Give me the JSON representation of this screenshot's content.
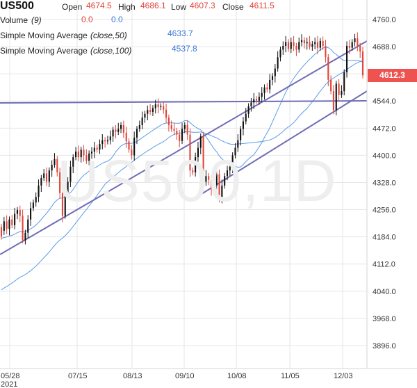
{
  "header": {
    "symbol": "US500",
    "open_label": "Open",
    "open_value": "4674.5",
    "high_label": "High",
    "high_value": "4686.1",
    "low_label": "Low",
    "low_value": "4607.3",
    "close_label": "Close",
    "close_value": "4611.5",
    "volume_label": "Volume",
    "volume_param": "(9)",
    "volume_value_1": "0.0",
    "volume_value_2": "0.0",
    "sma50_label": "Simple Moving Average",
    "sma50_param": "(close,50)",
    "sma50_value": "4633.7",
    "sma100_label": "Simple Moving Average",
    "sma100_param": "(close,100)",
    "sma100_value": "4537.8"
  },
  "watermark": "US500,1D",
  "last_price_label": "4612.3",
  "colors": {
    "up": "#111111",
    "down": "#e0443a",
    "ma": "#5a9be8",
    "trend": "#6f6cb5",
    "price_tag": "#ef5350",
    "grid": "#e6e6e6"
  },
  "chart_data": {
    "type": "candlestick",
    "title": "US500",
    "y_ticks": [
      4760.0,
      4688.0,
      4616.0,
      4544.0,
      4472.0,
      4400.0,
      4328.0,
      4256.0,
      4184.0,
      4112.0,
      4040.0,
      3968.0,
      3896.0
    ],
    "y_tick_labels": [
      "4760.0",
      "4688.0",
      "4616.0",
      "4544.0",
      "4472.0",
      "4400.0",
      "4328.0",
      "4256.0",
      "4184.0",
      "4112.0",
      "4040.0",
      "3968.0",
      "3896.0"
    ],
    "ylim": [
      3840,
      4788
    ],
    "x_tick_labels": [
      "05/28",
      "07/15",
      "08/13",
      "09/10",
      "10/08",
      "11/05",
      "12/03"
    ],
    "x_sublabel": "2021",
    "ohlc_points": [
      [
        4210,
        4185
      ],
      [
        4200,
        4225
      ],
      [
        4225,
        4205
      ],
      [
        4205,
        4230
      ],
      [
        4230,
        4215
      ],
      [
        4215,
        4245
      ],
      [
        4245,
        4255
      ],
      [
        4255,
        4240
      ],
      [
        4240,
        4175
      ],
      [
        4175,
        4195
      ],
      [
        4195,
        4230
      ],
      [
        4230,
        4260
      ],
      [
        4260,
        4275
      ],
      [
        4275,
        4290
      ],
      [
        4290,
        4320
      ],
      [
        4320,
        4340
      ],
      [
        4340,
        4352
      ],
      [
        4352,
        4330
      ],
      [
        4330,
        4360
      ],
      [
        4360,
        4375
      ],
      [
        4375,
        4390
      ],
      [
        4390,
        4355
      ],
      [
        4355,
        4300
      ],
      [
        4300,
        4240
      ],
      [
        4240,
        4300
      ],
      [
        4300,
        4330
      ],
      [
        4330,
        4370
      ],
      [
        4370,
        4395
      ],
      [
        4395,
        4410
      ],
      [
        4410,
        4395
      ],
      [
        4395,
        4415
      ],
      [
        4415,
        4400
      ],
      [
        4400,
        4385
      ],
      [
        4385,
        4405
      ],
      [
        4405,
        4410
      ],
      [
        4410,
        4420
      ],
      [
        4420,
        4415
      ],
      [
        4415,
        4430
      ],
      [
        4430,
        4440
      ],
      [
        4440,
        4437
      ],
      [
        4437,
        4440
      ],
      [
        4440,
        4450
      ],
      [
        4450,
        4468
      ],
      [
        4468,
        4462
      ],
      [
        4462,
        4470
      ],
      [
        4470,
        4480
      ],
      [
        4480,
        4460
      ],
      [
        4460,
        4437
      ],
      [
        4437,
        4415
      ],
      [
        4415,
        4400
      ],
      [
        4400,
        4447
      ],
      [
        4447,
        4470
      ],
      [
        4470,
        4480
      ],
      [
        4480,
        4500
      ],
      [
        4500,
        4510
      ],
      [
        4510,
        4520
      ],
      [
        4520,
        4515
      ],
      [
        4515,
        4525
      ],
      [
        4525,
        4535
      ],
      [
        4535,
        4528
      ],
      [
        4528,
        4530
      ],
      [
        4530,
        4521
      ],
      [
        4521,
        4500
      ],
      [
        4500,
        4480
      ],
      [
        4480,
        4470
      ],
      [
        4470,
        4465
      ],
      [
        4465,
        4455
      ],
      [
        4455,
        4438
      ],
      [
        4438,
        4470
      ],
      [
        4470,
        4480
      ],
      [
        4480,
        4455
      ],
      [
        4455,
        4360
      ],
      [
        4360,
        4355
      ],
      [
        4355,
        4395
      ],
      [
        4395,
        4420
      ],
      [
        4420,
        4450
      ],
      [
        4450,
        4330
      ],
      [
        4330,
        4345
      ],
      [
        4345,
        4335
      ],
      [
        4335,
        4310
      ],
      [
        4310,
        4320
      ],
      [
        4320,
        4350
      ],
      [
        4350,
        4290
      ],
      [
        4290,
        4320
      ],
      [
        4320,
        4345
      ],
      [
        4345,
        4360
      ],
      [
        4360,
        4370
      ],
      [
        4370,
        4400
      ],
      [
        4400,
        4420
      ],
      [
        4420,
        4440
      ],
      [
        4440,
        4470
      ],
      [
        4470,
        4490
      ],
      [
        4490,
        4510
      ],
      [
        4510,
        4530
      ],
      [
        4530,
        4540
      ],
      [
        4540,
        4549
      ],
      [
        4549,
        4545
      ],
      [
        4545,
        4555
      ],
      [
        4555,
        4565
      ],
      [
        4565,
        4580
      ],
      [
        4580,
        4575
      ],
      [
        4575,
        4600
      ],
      [
        4600,
        4610
      ],
      [
        4610,
        4630
      ],
      [
        4630,
        4660
      ],
      [
        4660,
        4680
      ],
      [
        4680,
        4690
      ],
      [
        4690,
        4700
      ],
      [
        4700,
        4682
      ],
      [
        4682,
        4700
      ],
      [
        4700,
        4690
      ],
      [
        4690,
        4680
      ],
      [
        4680,
        4700
      ],
      [
        4700,
        4705
      ],
      [
        4705,
        4697
      ],
      [
        4697,
        4700
      ],
      [
        4700,
        4688
      ],
      [
        4688,
        4695
      ],
      [
        4695,
        4700
      ],
      [
        4700,
        4685
      ],
      [
        4685,
        4703
      ],
      [
        4703,
        4690
      ],
      [
        4690,
        4660
      ],
      [
        4660,
        4600
      ],
      [
        4600,
        4570
      ],
      [
        4570,
        4520
      ],
      [
        4520,
        4590
      ],
      [
        4590,
        4560
      ],
      [
        4560,
        4570
      ],
      [
        4570,
        4620
      ],
      [
        4620,
        4690
      ],
      [
        4690,
        4685
      ],
      [
        4685,
        4700
      ],
      [
        4700,
        4710
      ],
      [
        4710,
        4690
      ],
      [
        4690,
        4675
      ],
      [
        4675,
        4612
      ]
    ],
    "sma50": {
      "name": "Simple Moving Average (close,50)",
      "value": 4633.7
    },
    "sma100": {
      "name": "Simple Moving Average (close,100)",
      "value": 4537.8
    }
  }
}
